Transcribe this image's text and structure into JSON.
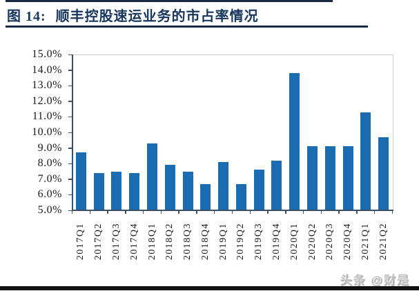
{
  "header": {
    "title_prefix": "图 14:",
    "title": "顺丰控股速运业务的市占率情况"
  },
  "watermark": {
    "text": "头条 @财是"
  },
  "chart_data": {
    "type": "bar",
    "title": "顺丰控股速运业务的市占率情况",
    "categories": [
      "2017Q1",
      "2017Q2",
      "2017Q3",
      "2017Q4",
      "2018Q1",
      "2018Q2",
      "2018Q3",
      "2018Q4",
      "2019Q1",
      "2019Q2",
      "2019Q3",
      "2019Q4",
      "2020Q1",
      "2020Q2",
      "2020Q3",
      "2020Q4",
      "2021Q1",
      "2021Q2"
    ],
    "values": [
      8.7,
      7.4,
      7.5,
      7.4,
      9.3,
      7.9,
      7.5,
      6.7,
      8.1,
      6.7,
      7.6,
      8.2,
      13.8,
      9.1,
      9.1,
      9.1,
      11.3,
      9.7
    ],
    "unit": "%",
    "ylim": [
      5.0,
      15.0
    ],
    "y_tick_labels": [
      "15.0%",
      "14.0%",
      "13.0%",
      "12.0%",
      "11.0%",
      "10.0%",
      "9.0%",
      "8.0%",
      "7.0%",
      "6.0%",
      "5.0%"
    ],
    "xlabel": "",
    "ylabel": "",
    "grid": false,
    "legend": "none",
    "bar_color": "#1c6cb2",
    "axis_color": "#3d4e63",
    "plot_border_color": "#c9c9c9",
    "label_color": "#1a1a1a",
    "title_color": "#17365d"
  }
}
